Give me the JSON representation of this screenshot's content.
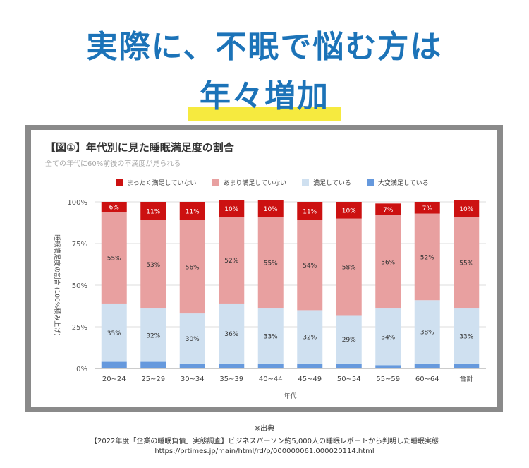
{
  "headline": {
    "line1": "実際に、不眠で悩む方は",
    "line2": "年々増加"
  },
  "colors": {
    "headline": "#1c73b8",
    "marker": "#f6ea3f",
    "very_dissatisfied": "#cc1111",
    "somewhat_dissatisfied": "#e8a0a0",
    "satisfied": "#cfe0f0",
    "very_satisfied": "#6699dd"
  },
  "chart_data": {
    "type": "bar",
    "stacked": true,
    "title": "【図①】年代別に見た睡眠満足度の割合",
    "subtitle": "全ての年代に60%前後の不満度が見られる",
    "xlabel": "年代",
    "ylabel": "睡眠満足度の割合 (100%積み上げ)",
    "ylim": [
      0,
      100
    ],
    "yticks": [
      "0%",
      "25%",
      "50%",
      "75%",
      "100%"
    ],
    "legend_position": "top",
    "categories": [
      "20~24",
      "25~29",
      "30~34",
      "35~39",
      "40~44",
      "45~49",
      "50~54",
      "55~59",
      "60~64",
      "合計"
    ],
    "series": [
      {
        "name": "大変満足している",
        "color_key": "very_satisfied",
        "values": [
          4,
          4,
          3,
          3,
          3,
          3,
          3,
          2,
          3,
          3
        ]
      },
      {
        "name": "満足している",
        "color_key": "satisfied",
        "values": [
          35,
          32,
          30,
          36,
          33,
          32,
          29,
          34,
          38,
          33
        ]
      },
      {
        "name": "あまり満足していない",
        "color_key": "somewhat_dissatisfied",
        "values": [
          55,
          53,
          56,
          52,
          55,
          54,
          58,
          56,
          52,
          55
        ]
      },
      {
        "name": "まったく満足していない",
        "color_key": "very_dissatisfied",
        "values": [
          6,
          11,
          11,
          10,
          10,
          11,
          10,
          7,
          7,
          10
        ]
      }
    ],
    "legend_order": [
      "まったく満足していない",
      "あまり満足していない",
      "満足している",
      "大変満足している"
    ]
  },
  "footer": {
    "note": "※出典",
    "source": "【2022年度「企業の睡眠負債」実態調査】ビジネスパーソン約5,000人の睡眠レポートから判明した睡眠実態",
    "url": "https://prtimes.jp/main/html/rd/p/000000061.000020114.html"
  }
}
